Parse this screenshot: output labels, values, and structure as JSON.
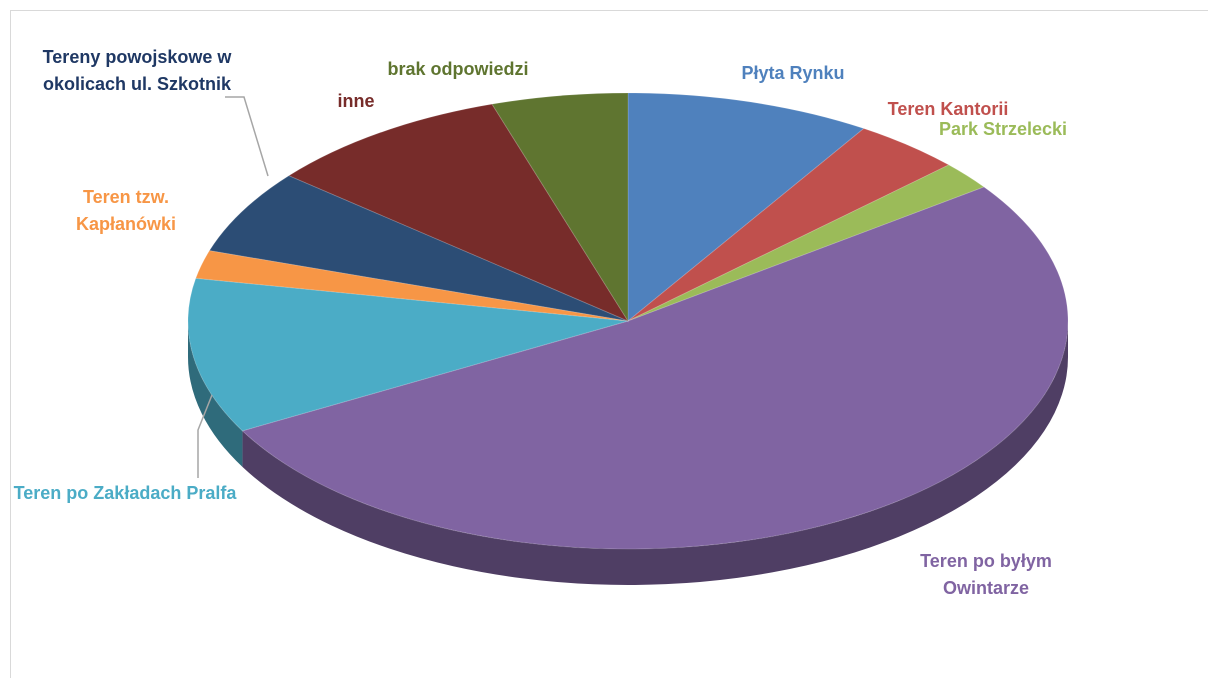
{
  "chart_data": {
    "type": "pie3d",
    "categories": [
      "Płyta Rynku",
      "Teren Kantorii",
      "Park Strzelecki",
      "Teren po byłym Owintarze",
      "Teren po Zakładach Pralfa",
      "Teren tzw. Kapłanówki",
      "Tereny powojskowe w okolicach ul. Szkotnik",
      "inne",
      "brak odpowiedzi"
    ],
    "values": [
      9,
      4,
      2,
      52,
      11,
      2,
      6,
      9,
      5
    ],
    "colors": [
      "#4f81bd",
      "#c0504d",
      "#9bbb59",
      "#8064a2",
      "#4bacc6",
      "#f79646",
      "#2c4d75",
      "#772c2a",
      "#5f7530"
    ]
  }
}
